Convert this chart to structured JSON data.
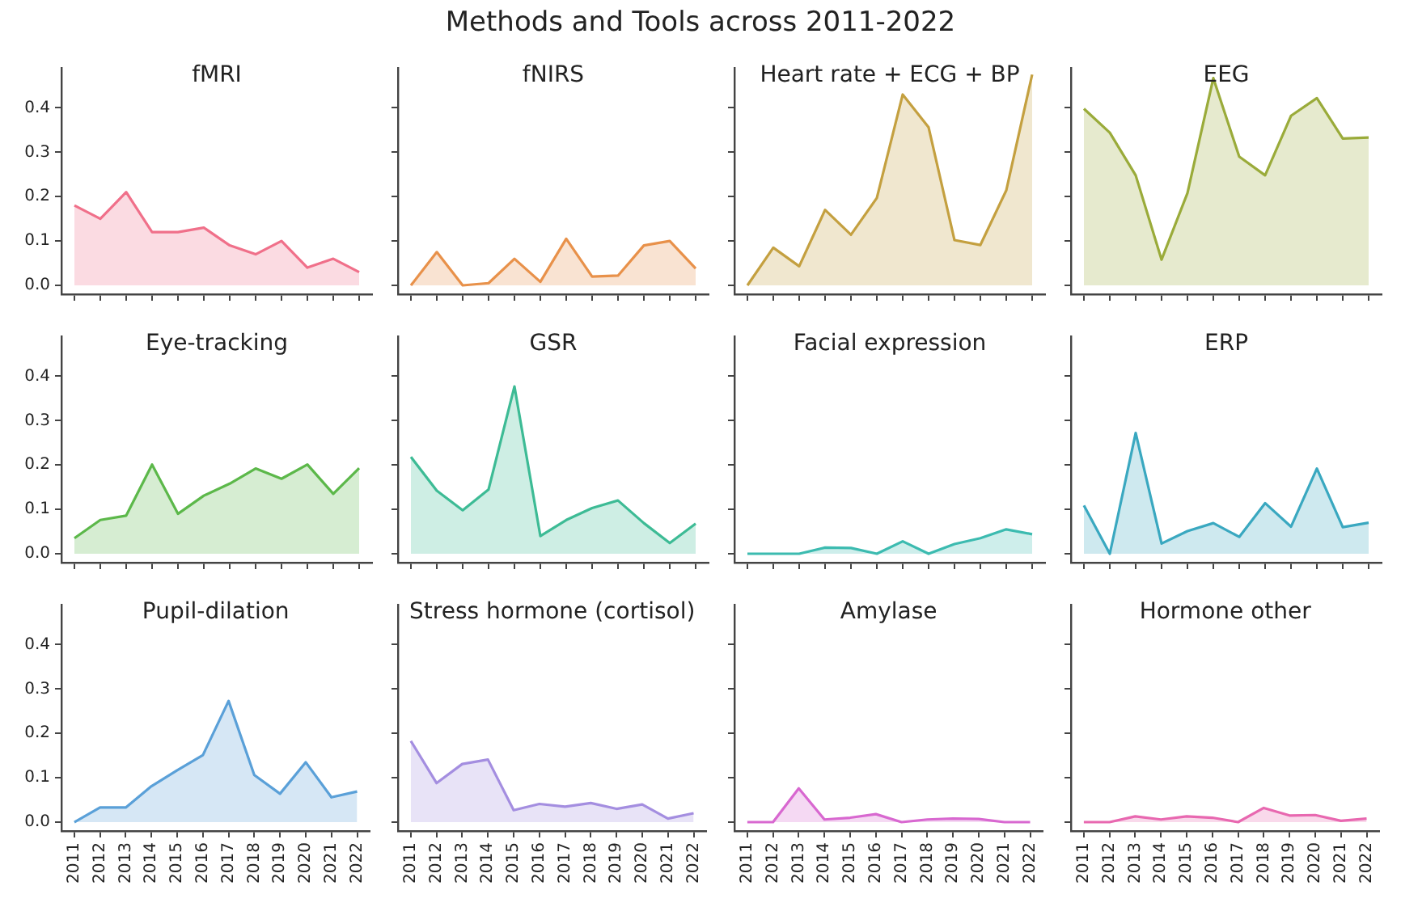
{
  "chart_data": [
    {
      "type": "other",
      "title": "Methods and Tools across 2011-2022"
    },
    {
      "type": "area",
      "title": "fMRI",
      "tick_labels": "y",
      "categories": [
        "2011",
        "2012",
        "2013",
        "2014",
        "2015",
        "2016",
        "2017",
        "2018",
        "2019",
        "2020",
        "2021",
        "2022"
      ],
      "ylim": [
        -0.02,
        0.49
      ],
      "yticks": [
        {
          "value": 0,
          "label": "0.0"
        },
        0.1,
        0.2,
        0.3,
        0.4
      ],
      "series": [
        {
          "color": "#f0708a",
          "values": [
            0.18,
            0.15,
            0.21,
            0.12,
            0.12,
            0.13,
            0.09,
            0.07,
            0.1,
            0.04,
            0.06,
            0.03
          ]
        }
      ]
    },
    {
      "type": "area",
      "title": "fNIRS",
      "tick_labels": false,
      "categories": [
        "2011",
        "2012",
        "2013",
        "2014",
        "2015",
        "2016",
        "2017",
        "2018",
        "2019",
        "2020",
        "2021",
        "2022"
      ],
      "ylim": [
        -0.02,
        0.49
      ],
      "yticks": [
        {
          "value": 0,
          "label": null
        },
        {
          "value": 0.1,
          "label": null
        },
        {
          "value": 0.2,
          "label": null
        },
        {
          "value": 0.3,
          "label": null
        },
        {
          "value": 0.4,
          "label": null
        }
      ],
      "series": [
        {
          "color": "#e8914a",
          "values": [
            0,
            0.075,
            0,
            0.005,
            0.06,
            0.008,
            0.105,
            0.02,
            0.022,
            0.09,
            0.1,
            0.038
          ]
        }
      ]
    },
    {
      "type": "area",
      "title": "Heart rate + ECG + BP",
      "tick_labels": false,
      "categories": [
        "2011",
        "2012",
        "2013",
        "2014",
        "2015",
        "2016",
        "2017",
        "2018",
        "2019",
        "2020",
        "2021",
        "2022"
      ],
      "ylim": [
        -0.02,
        0.49
      ],
      "yticks": [
        {
          "value": 0,
          "label": null
        },
        {
          "value": 0.1,
          "label": null
        },
        {
          "value": 0.2,
          "label": null
        },
        {
          "value": 0.3,
          "label": null
        },
        {
          "value": 0.4,
          "label": null
        }
      ],
      "series": [
        {
          "color": "#c4a040",
          "values": [
            0,
            0.085,
            0.043,
            0.17,
            0.114,
            0.197,
            0.43,
            0.356,
            0.102,
            0.091,
            0.214,
            0.475
          ]
        }
      ]
    },
    {
      "type": "area",
      "title": "EEG",
      "tick_labels": false,
      "categories": [
        "2011",
        "2012",
        "2013",
        "2014",
        "2015",
        "2016",
        "2017",
        "2018",
        "2019",
        "2020",
        "2021",
        "2022"
      ],
      "ylim": [
        -0.02,
        0.49
      ],
      "yticks": [
        {
          "value": 0,
          "label": null
        },
        {
          "value": 0.1,
          "label": null
        },
        {
          "value": 0.2,
          "label": null
        },
        {
          "value": 0.3,
          "label": null
        },
        {
          "value": 0.4,
          "label": null
        }
      ],
      "series": [
        {
          "color": "#9aab3a",
          "values": [
            0.398,
            0.344,
            0.248,
            0.058,
            0.208,
            0.467,
            0.29,
            0.248,
            0.382,
            0.422,
            0.331,
            0.333
          ]
        }
      ]
    },
    {
      "type": "area",
      "title": "Eye-tracking",
      "tick_labels": "y",
      "categories": [
        "2011",
        "2012",
        "2013",
        "2014",
        "2015",
        "2016",
        "2017",
        "2018",
        "2019",
        "2020",
        "2021",
        "2022"
      ],
      "ylim": [
        -0.02,
        0.49
      ],
      "yticks": [
        {
          "value": 0,
          "label": "0.0"
        },
        0.1,
        0.2,
        0.3,
        0.4
      ],
      "series": [
        {
          "color": "#5cb84a",
          "values": [
            0.035,
            0.076,
            0.086,
            0.201,
            0.09,
            0.131,
            0.158,
            0.192,
            0.169,
            0.201,
            0.135,
            0.193
          ]
        }
      ]
    },
    {
      "type": "area",
      "title": "GSR",
      "tick_labels": false,
      "categories": [
        "2011",
        "2012",
        "2013",
        "2014",
        "2015",
        "2016",
        "2017",
        "2018",
        "2019",
        "2020",
        "2021",
        "2022"
      ],
      "ylim": [
        -0.02,
        0.49
      ],
      "yticks": [
        {
          "value": 0,
          "label": null
        },
        {
          "value": 0.1,
          "label": null
        },
        {
          "value": 0.2,
          "label": null
        },
        {
          "value": 0.3,
          "label": null
        },
        {
          "value": 0.4,
          "label": null
        }
      ],
      "series": [
        {
          "color": "#3dbb95",
          "values": [
            0.218,
            0.142,
            0.098,
            0.145,
            0.377,
            0.04,
            0.076,
            0.103,
            0.12,
            0.069,
            0.024,
            0.068
          ]
        }
      ]
    },
    {
      "type": "area",
      "title": "Facial expression",
      "tick_labels": false,
      "categories": [
        "2011",
        "2012",
        "2013",
        "2014",
        "2015",
        "2016",
        "2017",
        "2018",
        "2019",
        "2020",
        "2021",
        "2022"
      ],
      "ylim": [
        -0.02,
        0.49
      ],
      "yticks": [
        {
          "value": 0,
          "label": null
        },
        {
          "value": 0.1,
          "label": null
        },
        {
          "value": 0.2,
          "label": null
        },
        {
          "value": 0.3,
          "label": null
        },
        {
          "value": 0.4,
          "label": null
        }
      ],
      "series": [
        {
          "color": "#3cbbb0",
          "values": [
            0,
            0,
            0,
            0.014,
            0.013,
            0,
            0.028,
            0,
            0.022,
            0.035,
            0.055,
            0.044
          ]
        }
      ]
    },
    {
      "type": "area",
      "title": "ERP",
      "tick_labels": false,
      "categories": [
        "2011",
        "2012",
        "2013",
        "2014",
        "2015",
        "2016",
        "2017",
        "2018",
        "2019",
        "2020",
        "2021",
        "2022"
      ],
      "ylim": [
        -0.02,
        0.49
      ],
      "yticks": [
        {
          "value": 0,
          "label": null
        },
        {
          "value": 0.1,
          "label": null
        },
        {
          "value": 0.2,
          "label": null
        },
        {
          "value": 0.3,
          "label": null
        },
        {
          "value": 0.4,
          "label": null
        }
      ],
      "series": [
        {
          "color": "#3aa8c0",
          "values": [
            0.109,
            0,
            0.272,
            0.023,
            0.051,
            0.069,
            0.038,
            0.114,
            0.061,
            0.192,
            0.06,
            0.07
          ]
        }
      ]
    },
    {
      "type": "area",
      "title": "Pupil-dilation",
      "categories": [
        "2011",
        "2012",
        "2013",
        "2014",
        "2015",
        "2016",
        "2017",
        "2018",
        "2019",
        "2020",
        "2021",
        "2022"
      ],
      "ylim": [
        -0.02,
        0.49
      ],
      "yticks": [
        {
          "value": 0,
          "label": "0.0"
        },
        0.1,
        0.2,
        0.3,
        0.4
      ],
      "series": [
        {
          "color": "#5aa0d8",
          "values": [
            0,
            0.033,
            0.033,
            0.081,
            0.117,
            0.151,
            0.273,
            0.106,
            0.064,
            0.135,
            0.056,
            0.069
          ]
        }
      ]
    },
    {
      "type": "area",
      "title": "Stress hormone (cortisol)",
      "tick_labels": "x",
      "categories": [
        "2011",
        "2012",
        "2013",
        "2014",
        "2015",
        "2016",
        "2017",
        "2018",
        "2019",
        "2020",
        "2021",
        "2022"
      ],
      "ylim": [
        -0.02,
        0.49
      ],
      "yticks": [
        {
          "value": 0,
          "label": null
        },
        {
          "value": 0.1,
          "label": null
        },
        {
          "value": 0.2,
          "label": null
        },
        {
          "value": 0.3,
          "label": null
        },
        {
          "value": 0.4,
          "label": null
        }
      ],
      "series": [
        {
          "color": "#a48ee0",
          "values": [
            0.183,
            0.088,
            0.131,
            0.141,
            0.027,
            0.041,
            0.035,
            0.043,
            0.03,
            0.04,
            0.008,
            0.02
          ]
        }
      ]
    },
    {
      "type": "area",
      "title": "Amylase",
      "tick_labels": "x",
      "categories": [
        "2011",
        "2012",
        "2013",
        "2014",
        "2015",
        "2016",
        "2017",
        "2018",
        "2019",
        "2020",
        "2021",
        "2022"
      ],
      "ylim": [
        -0.02,
        0.49
      ],
      "yticks": [
        {
          "value": 0,
          "label": null
        },
        {
          "value": 0.1,
          "label": null
        },
        {
          "value": 0.2,
          "label": null
        },
        {
          "value": 0.3,
          "label": null
        },
        {
          "value": 0.4,
          "label": null
        }
      ],
      "series": [
        {
          "color": "#d868d0",
          "values": [
            0,
            0,
            0.076,
            0.006,
            0.01,
            0.018,
            0,
            0.006,
            0.008,
            0.007,
            0,
            0
          ]
        }
      ]
    },
    {
      "type": "area",
      "title": "Hormone other",
      "tick_labels": "x",
      "categories": [
        "2011",
        "2012",
        "2013",
        "2014",
        "2015",
        "2016",
        "2017",
        "2018",
        "2019",
        "2020",
        "2021",
        "2022"
      ],
      "ylim": [
        -0.02,
        0.49
      ],
      "yticks": [
        {
          "value": 0,
          "label": null
        },
        {
          "value": 0.1,
          "label": null
        },
        {
          "value": 0.2,
          "label": null
        },
        {
          "value": 0.3,
          "label": null
        },
        {
          "value": 0.4,
          "label": null
        }
      ],
      "series": [
        {
          "color": "#e868b0",
          "values": [
            0,
            0,
            0.013,
            0.006,
            0.013,
            0.01,
            0,
            0.032,
            0.015,
            0.016,
            0.003,
            0.008
          ]
        }
      ]
    }
  ]
}
